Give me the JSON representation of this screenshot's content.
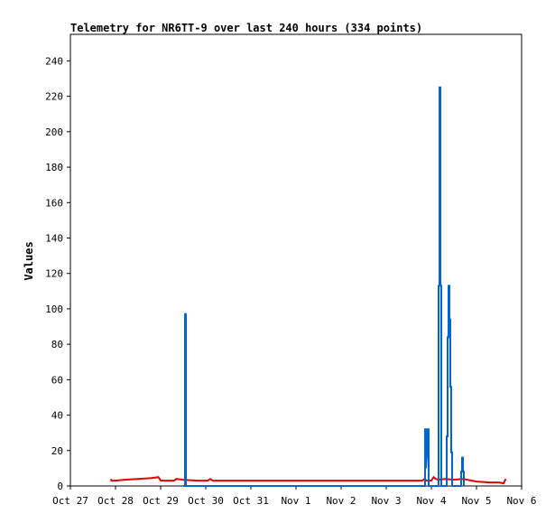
{
  "chart_data": {
    "type": "line",
    "title": "Telemetry for NR6TT-9 over last 240 hours (334 points)",
    "xlabel": "",
    "ylabel": "Values",
    "x_ticks": [
      "Oct 27",
      "Oct 28",
      "Oct 29",
      "Oct 30",
      "Oct 31",
      "Nov 1",
      "Nov 2",
      "Nov 3",
      "Nov 4",
      "Nov 5",
      "Nov 6"
    ],
    "y_ticks": [
      0,
      20,
      40,
      60,
      80,
      100,
      120,
      140,
      160,
      180,
      200,
      220,
      240
    ],
    "xlim": [
      0,
      10
    ],
    "ylim": [
      0,
      255
    ],
    "grid": false,
    "series": [
      {
        "color": "#e60000",
        "points": [
          [
            0.9,
            4
          ],
          [
            0.91,
            3
          ],
          [
            1.0,
            3
          ],
          [
            1.2,
            3.5
          ],
          [
            1.5,
            4
          ],
          [
            1.8,
            4.5
          ],
          [
            1.95,
            5
          ],
          [
            2.0,
            3
          ],
          [
            2.3,
            3
          ],
          [
            2.35,
            4
          ],
          [
            2.5,
            3.5
          ],
          [
            2.8,
            3
          ],
          [
            3.05,
            3
          ],
          [
            3.1,
            4
          ],
          [
            3.15,
            3
          ],
          [
            3.5,
            3
          ],
          [
            4.0,
            3
          ],
          [
            5.0,
            3
          ],
          [
            6.0,
            3
          ],
          [
            7.0,
            3
          ],
          [
            7.8,
            3
          ],
          [
            7.85,
            4
          ],
          [
            7.9,
            3
          ],
          [
            8.0,
            3
          ],
          [
            8.05,
            5
          ],
          [
            8.1,
            4
          ],
          [
            8.15,
            3.5
          ],
          [
            8.3,
            4
          ],
          [
            8.5,
            3.5
          ],
          [
            8.7,
            4
          ],
          [
            8.9,
            3
          ],
          [
            9.0,
            2.5
          ],
          [
            9.3,
            2
          ],
          [
            9.5,
            2
          ],
          [
            9.6,
            1.5
          ],
          [
            9.65,
            4
          ]
        ]
      },
      {
        "color": "#0066cc",
        "points": [
          [
            2.5,
            0
          ],
          [
            2.54,
            0
          ],
          [
            2.54,
            97
          ],
          [
            2.56,
            97
          ],
          [
            2.56,
            0
          ],
          [
            7.86,
            0
          ],
          [
            7.86,
            32
          ],
          [
            7.88,
            32
          ],
          [
            7.88,
            10
          ],
          [
            7.9,
            17
          ],
          [
            7.92,
            17
          ],
          [
            7.92,
            32
          ],
          [
            7.94,
            32
          ],
          [
            7.94,
            0
          ],
          [
            8.16,
            0
          ],
          [
            8.16,
            113
          ],
          [
            8.18,
            113
          ],
          [
            8.18,
            225
          ],
          [
            8.2,
            225
          ],
          [
            8.2,
            113
          ],
          [
            8.22,
            113
          ],
          [
            8.22,
            0
          ],
          [
            8.34,
            0
          ],
          [
            8.34,
            28
          ],
          [
            8.36,
            28
          ],
          [
            8.36,
            84
          ],
          [
            8.38,
            84
          ],
          [
            8.38,
            113
          ],
          [
            8.4,
            113
          ],
          [
            8.4,
            94
          ],
          [
            8.42,
            94
          ],
          [
            8.42,
            56
          ],
          [
            8.44,
            56
          ],
          [
            8.44,
            19
          ],
          [
            8.46,
            19
          ],
          [
            8.46,
            0
          ],
          [
            8.66,
            0
          ],
          [
            8.66,
            8
          ],
          [
            8.68,
            8
          ],
          [
            8.68,
            16
          ],
          [
            8.7,
            16
          ],
          [
            8.7,
            8
          ],
          [
            8.72,
            8
          ],
          [
            8.72,
            0
          ]
        ]
      }
    ]
  }
}
